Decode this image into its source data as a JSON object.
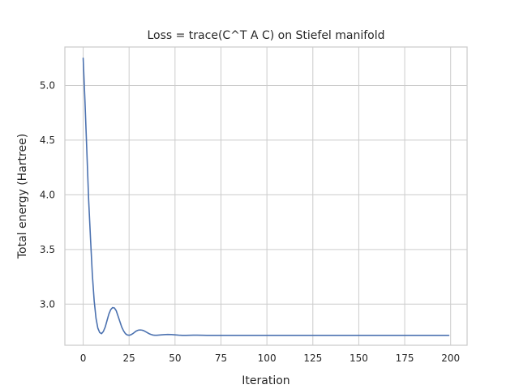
{
  "chart_data": {
    "type": "line",
    "title": "Loss = trace(C^T A C) on Stiefel manifold",
    "xlabel": "Iteration",
    "ylabel": "Total energy (Hartree)",
    "xlim": [
      -9.95,
      208.95
    ],
    "ylim": [
      2.624,
      5.352
    ],
    "grid": true,
    "x_ticks": [
      0,
      25,
      50,
      75,
      100,
      125,
      150,
      175,
      200
    ],
    "y_ticks": [
      3.0,
      3.5,
      4.0,
      4.5,
      5.0
    ],
    "x_tick_labels": [
      "0",
      "25",
      "50",
      "75",
      "100",
      "125",
      "150",
      "175",
      "200"
    ],
    "y_tick_labels": [
      "3.0",
      "3.5",
      "4.0",
      "4.5",
      "5.0"
    ],
    "line_color": "#4c72b0",
    "series": [
      {
        "x": [
          0,
          1,
          2,
          3,
          4,
          5,
          6,
          7,
          8,
          9,
          10,
          11,
          12,
          13,
          14,
          15,
          16,
          17,
          18,
          19,
          20,
          21,
          22,
          23,
          24,
          25,
          26,
          27,
          28,
          29,
          30,
          31,
          32,
          33,
          34,
          35,
          36,
          37,
          38,
          39,
          40,
          42,
          44,
          46,
          48,
          50,
          52,
          54,
          56,
          58,
          60,
          62,
          65,
          70,
          75,
          80,
          90,
          100,
          120,
          140,
          160,
          180,
          199
        ],
        "values": [
          5.25,
          4.85,
          4.4,
          3.95,
          3.6,
          3.27,
          3.03,
          2.87,
          2.78,
          2.74,
          2.73,
          2.75,
          2.79,
          2.85,
          2.91,
          2.95,
          2.968,
          2.965,
          2.94,
          2.89,
          2.84,
          2.79,
          2.755,
          2.73,
          2.718,
          2.715,
          2.72,
          2.73,
          2.743,
          2.755,
          2.762,
          2.764,
          2.762,
          2.757,
          2.748,
          2.738,
          2.729,
          2.722,
          2.717,
          2.715,
          2.715,
          2.718,
          2.721,
          2.723,
          2.722,
          2.719,
          2.716,
          2.714,
          2.714,
          2.715,
          2.716,
          2.716,
          2.715,
          2.714,
          2.714,
          2.714,
          2.714,
          2.714,
          2.714,
          2.714,
          2.714,
          2.714,
          2.714
        ]
      }
    ]
  }
}
